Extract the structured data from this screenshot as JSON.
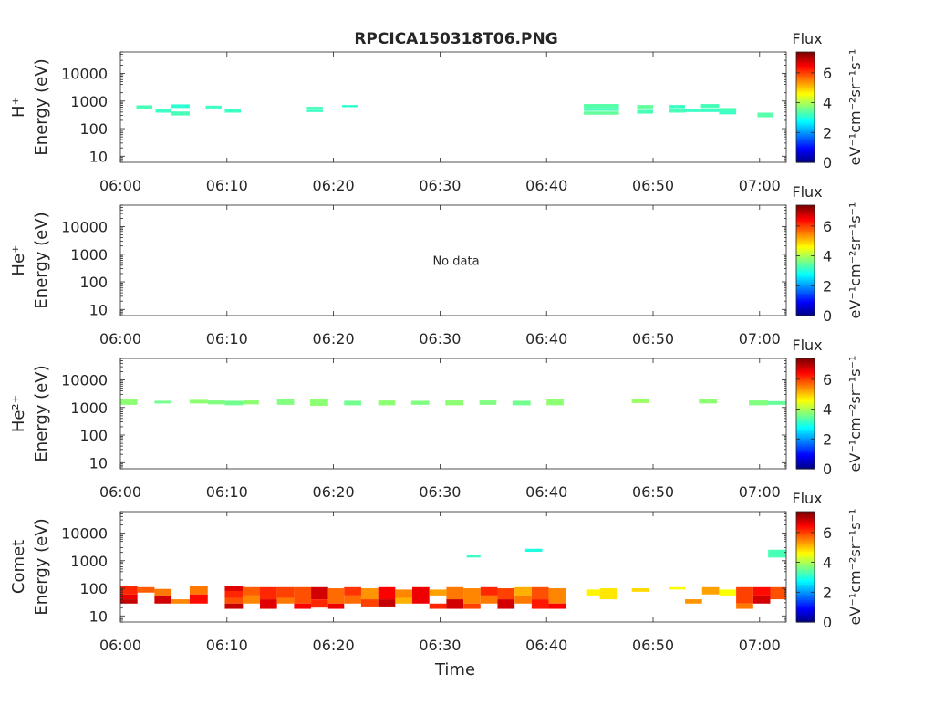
{
  "title": "RPCICA150318T06.PNG",
  "x_label": "Time",
  "x_tick_labels": [
    "06:00",
    "06:10",
    "06:20",
    "06:30",
    "06:40",
    "06:50",
    "07:00"
  ],
  "y_tick_labels": [
    "10",
    "100",
    "1000",
    "10000"
  ],
  "colorbar": {
    "title": "Flux",
    "unit_label": "eV⁻¹cm⁻²sr⁻¹s⁻¹",
    "tick_labels": [
      "0",
      "2",
      "4",
      "6"
    ],
    "range": [
      0,
      7.4
    ],
    "colormap": "jet"
  },
  "no_data_text": "No data",
  "chart_data": [
    {
      "type": "heatmap",
      "species_label": "H⁺",
      "ylabel": "Energy (eV)",
      "y_scale": "log",
      "ylim": [
        6,
        60000
      ],
      "xlim_minutes": [
        0,
        62.5
      ],
      "x_ticks_minutes": [
        0,
        10,
        20,
        30,
        40,
        50,
        60
      ],
      "y_ticks": [
        10,
        100,
        1000,
        10000
      ],
      "cells": [
        [
          1.5,
          3.0,
          520,
          700,
          3.3
        ],
        [
          3.3,
          4.8,
          380,
          520,
          3.2
        ],
        [
          4.8,
          6.5,
          560,
          760,
          3.1
        ],
        [
          4.8,
          6.5,
          300,
          420,
          3.3
        ],
        [
          8.0,
          9.5,
          540,
          680,
          3.2
        ],
        [
          9.8,
          11.3,
          380,
          500,
          3.2
        ],
        [
          17.5,
          19.0,
          480,
          620,
          3.3
        ],
        [
          17.5,
          19.0,
          400,
          470,
          3.2
        ],
        [
          20.8,
          22.3,
          600,
          720,
          3.1
        ],
        [
          43.5,
          46.8,
          560,
          780,
          3.4
        ],
        [
          43.5,
          46.8,
          440,
          560,
          3.3
        ],
        [
          43.5,
          46.8,
          320,
          420,
          3.5
        ],
        [
          48.5,
          50.0,
          540,
          720,
          3.5
        ],
        [
          48.5,
          50.0,
          350,
          480,
          3.3
        ],
        [
          51.5,
          53.0,
          550,
          720,
          3.2
        ],
        [
          51.5,
          53.0,
          380,
          500,
          3.3
        ],
        [
          53.0,
          54.5,
          400,
          500,
          3.2
        ],
        [
          54.5,
          56.2,
          560,
          780,
          3.3
        ],
        [
          54.5,
          56.2,
          400,
          520,
          3.2
        ],
        [
          56.2,
          57.8,
          420,
          560,
          3.3
        ],
        [
          56.2,
          57.8,
          330,
          430,
          3.2
        ],
        [
          59.8,
          61.3,
          260,
          380,
          3.4
        ]
      ]
    },
    {
      "type": "heatmap",
      "species_label": "He⁺",
      "ylabel": "Energy (eV)",
      "y_scale": "log",
      "ylim": [
        6,
        60000
      ],
      "xlim_minutes": [
        0,
        62.5
      ],
      "x_ticks_minutes": [
        0,
        10,
        20,
        30,
        40,
        50,
        60
      ],
      "y_ticks": [
        10,
        100,
        1000,
        10000
      ],
      "cells": []
    },
    {
      "type": "heatmap",
      "species_label": "He²⁺",
      "ylabel": "Energy (eV)",
      "y_scale": "log",
      "ylim": [
        6,
        60000
      ],
      "xlim_minutes": [
        0,
        62.5
      ],
      "x_ticks_minutes": [
        0,
        10,
        20,
        30,
        40,
        50,
        60
      ],
      "y_ticks": [
        10,
        100,
        1000,
        10000
      ],
      "cells": [
        [
          0.0,
          1.6,
          1250,
          1950,
          3.8
        ],
        [
          3.2,
          4.8,
          1400,
          1750,
          3.6
        ],
        [
          6.5,
          8.2,
          1400,
          1900,
          3.8
        ],
        [
          8.2,
          9.8,
          1300,
          1800,
          3.7
        ],
        [
          9.8,
          11.5,
          1200,
          1750,
          3.6
        ],
        [
          11.5,
          13.0,
          1300,
          1800,
          3.8
        ],
        [
          14.7,
          16.3,
          1250,
          2100,
          3.7
        ],
        [
          17.8,
          19.5,
          1150,
          2000,
          3.8
        ],
        [
          21.0,
          22.6,
          1200,
          1750,
          3.6
        ],
        [
          24.2,
          25.8,
          1200,
          1800,
          3.8
        ],
        [
          27.3,
          29.0,
          1250,
          1750,
          3.7
        ],
        [
          30.5,
          32.2,
          1200,
          1800,
          3.8
        ],
        [
          33.7,
          35.3,
          1250,
          1800,
          3.7
        ],
        [
          36.8,
          38.5,
          1200,
          1750,
          3.6
        ],
        [
          40.0,
          41.6,
          1200,
          2000,
          3.8
        ],
        [
          48.0,
          49.6,
          1450,
          2000,
          3.9
        ],
        [
          54.3,
          56.0,
          1400,
          2000,
          3.8
        ],
        [
          59.0,
          60.8,
          1200,
          1800,
          3.7
        ],
        [
          60.8,
          62.5,
          1250,
          1700,
          3.5
        ]
      ]
    },
    {
      "type": "heatmap",
      "species_label": "Comet",
      "ylabel": "Energy (eV)",
      "y_scale": "log",
      "ylim": [
        6,
        60000
      ],
      "xlim_minutes": [
        0,
        62.5
      ],
      "x_ticks_minutes": [
        0,
        10,
        20,
        30,
        40,
        50,
        60
      ],
      "y_ticks": [
        10,
        100,
        1000,
        10000
      ],
      "cells": [
        [
          0.0,
          1.6,
          60,
          120,
          6.2
        ],
        [
          0.0,
          1.6,
          40,
          60,
          6.6
        ],
        [
          0.0,
          1.6,
          28,
          40,
          6.9
        ],
        [
          1.6,
          3.2,
          70,
          110,
          5.8
        ],
        [
          3.2,
          4.8,
          55,
          95,
          5.6
        ],
        [
          3.2,
          4.8,
          28,
          55,
          6.8
        ],
        [
          4.8,
          6.5,
          28,
          40,
          5.5
        ],
        [
          6.5,
          8.2,
          60,
          120,
          5.6
        ],
        [
          6.5,
          8.2,
          28,
          60,
          6.4
        ],
        [
          9.8,
          11.5,
          80,
          120,
          6.7
        ],
        [
          9.8,
          11.5,
          45,
          80,
          6.2
        ],
        [
          9.8,
          11.5,
          28,
          45,
          5.9
        ],
        [
          9.8,
          11.5,
          18,
          28,
          6.9
        ],
        [
          11.5,
          13.1,
          55,
          110,
          5.8
        ],
        [
          11.5,
          13.1,
          28,
          55,
          5.5
        ],
        [
          13.1,
          14.7,
          40,
          110,
          6.2
        ],
        [
          13.1,
          14.7,
          18,
          40,
          6.7
        ],
        [
          14.7,
          16.3,
          45,
          110,
          6.0
        ],
        [
          14.7,
          16.3,
          28,
          45,
          5.6
        ],
        [
          16.3,
          17.9,
          28,
          110,
          5.9
        ],
        [
          16.3,
          17.9,
          18,
          28,
          6.5
        ],
        [
          17.9,
          19.5,
          40,
          110,
          6.8
        ],
        [
          17.9,
          19.5,
          20,
          40,
          6.2
        ],
        [
          19.5,
          21.0,
          28,
          100,
          5.7
        ],
        [
          19.5,
          21.0,
          18,
          28,
          6.6
        ],
        [
          21.0,
          22.6,
          55,
          110,
          6.1
        ],
        [
          21.0,
          22.6,
          28,
          55,
          5.7
        ],
        [
          22.6,
          24.2,
          40,
          100,
          5.4
        ],
        [
          22.6,
          24.2,
          22,
          40,
          6.0
        ],
        [
          24.2,
          25.8,
          40,
          110,
          6.5
        ],
        [
          24.2,
          25.8,
          22,
          40,
          6.9
        ],
        [
          25.8,
          27.4,
          45,
          90,
          5.5
        ],
        [
          25.8,
          27.4,
          28,
          45,
          5.2
        ],
        [
          27.4,
          29.0,
          28,
          110,
          6.6
        ],
        [
          29.0,
          30.6,
          55,
          90,
          5.3
        ],
        [
          29.0,
          30.6,
          18,
          28,
          6.2
        ],
        [
          30.6,
          32.2,
          40,
          110,
          5.6
        ],
        [
          30.6,
          32.2,
          18,
          40,
          6.8
        ],
        [
          32.2,
          33.8,
          28,
          100,
          5.5
        ],
        [
          32.2,
          33.8,
          18,
          28,
          6.0
        ],
        [
          33.8,
          35.4,
          55,
          110,
          6.2
        ],
        [
          33.8,
          35.4,
          28,
          55,
          5.6
        ],
        [
          35.4,
          37.0,
          40,
          100,
          6.0
        ],
        [
          35.4,
          37.0,
          18,
          40,
          6.8
        ],
        [
          37.0,
          38.6,
          55,
          110,
          5.2
        ],
        [
          37.0,
          38.6,
          28,
          55,
          5.6
        ],
        [
          38.6,
          40.2,
          40,
          110,
          5.9
        ],
        [
          38.6,
          40.2,
          18,
          40,
          6.3
        ],
        [
          40.2,
          41.8,
          28,
          100,
          5.5
        ],
        [
          40.2,
          41.8,
          18,
          28,
          6.5
        ],
        [
          43.8,
          45.0,
          55,
          90,
          4.7
        ],
        [
          45.0,
          46.6,
          40,
          100,
          4.8
        ],
        [
          48.0,
          49.6,
          75,
          100,
          4.9
        ],
        [
          51.5,
          53.0,
          90,
          110,
          4.6
        ],
        [
          53.0,
          54.6,
          28,
          40,
          5.4
        ],
        [
          54.6,
          56.2,
          60,
          110,
          5.3
        ],
        [
          56.2,
          57.8,
          55,
          90,
          4.6
        ],
        [
          57.8,
          59.4,
          28,
          110,
          6.0
        ],
        [
          57.8,
          59.4,
          18,
          28,
          5.6
        ],
        [
          59.4,
          61.0,
          55,
          110,
          6.4
        ],
        [
          59.4,
          61.0,
          28,
          55,
          6.8
        ],
        [
          61.0,
          62.5,
          40,
          110,
          5.9
        ],
        [
          32.5,
          33.8,
          1300,
          1600,
          3.2
        ],
        [
          38.0,
          39.6,
          2100,
          2700,
          3.0
        ],
        [
          60.8,
          62.5,
          1300,
          2500,
          3.3
        ]
      ]
    }
  ]
}
